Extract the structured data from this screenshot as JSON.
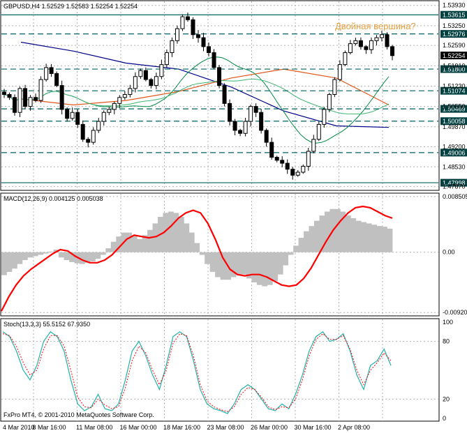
{
  "chart_data": [
    {
      "type": "candlestick",
      "title": "GBPUSD,H4  1.52529 1.52583 1.52254 1.52254",
      "annotation": "Двойная вершина?",
      "y_ticks": [
        "1.53930",
        "1.53250",
        "1.52590",
        "1.51910",
        "1.51230",
        "1.50550",
        "1.49870",
        "1.49200",
        "1.48530",
        "1.47870"
      ],
      "level_lines": [
        {
          "value": "1.53615",
          "style": "solid"
        },
        {
          "value": "1.52976",
          "style": "dashed"
        },
        {
          "value": "1.51800",
          "style": "dashed"
        },
        {
          "value": "1.51074",
          "style": "dashed"
        },
        {
          "value": "1.50469",
          "style": "dashed"
        },
        {
          "value": "1.50058",
          "style": "dashed"
        },
        {
          "value": "1.49006",
          "style": "dashed"
        },
        {
          "value": "1.47998",
          "style": "solid"
        }
      ],
      "current_price": "1.52254",
      "ylim": [
        1.4779,
        1.5404
      ],
      "series": [
        {
          "name": "close",
          "values": [
            1.5095,
            1.5085,
            1.5035,
            1.5115,
            1.5055,
            1.5085,
            1.5075,
            1.5145,
            1.5185,
            1.5165,
            1.5125,
            1.5045,
            1.5015,
            1.5035,
            1.4995,
            1.4945,
            1.4935,
            1.4975,
            1.5005,
            1.5035,
            1.5045,
            1.5065,
            1.5085,
            1.5095,
            1.5115,
            1.5155,
            1.5175,
            1.5145,
            1.5125,
            1.5155,
            1.5195,
            1.5235,
            1.5275,
            1.5315,
            1.5355,
            1.5345,
            1.5295,
            1.5285,
            1.5255,
            1.5235,
            1.5185,
            1.5125,
            1.5065,
            1.5005,
            1.4975,
            1.4965,
            1.5005,
            1.5055,
            1.5035,
            1.4975,
            1.4935,
            1.4885,
            1.4875,
            1.4865,
            1.4845,
            1.4825,
            1.4835,
            1.4855,
            1.4905,
            1.4945,
            1.4995,
            1.5045,
            1.5095,
            1.5145,
            1.5195,
            1.5235,
            1.5265,
            1.5275,
            1.5255,
            1.5245,
            1.5275,
            1.5285,
            1.5295,
            1.5255,
            1.5225
          ]
        },
        {
          "name": "ma_blue",
          "values": [
            1.527,
            1.524,
            1.52,
            1.518,
            1.512,
            1.504,
            1.499,
            1.4985
          ]
        },
        {
          "name": "ma_orange",
          "values": [
            1.508,
            1.506,
            1.5075,
            1.5105,
            1.515,
            1.518,
            1.515,
            1.506
          ]
        }
      ]
    },
    {
      "type": "bar",
      "title": "MACD(12,26,9) 0.004125 0.005038",
      "y_ticks": [
        "0.008505",
        "0.00",
        "-0.009207"
      ],
      "ylim": [
        -0.0095,
        0.0087
      ],
      "series": [
        {
          "name": "histogram",
          "values": [
            -0.0035,
            -0.003,
            -0.0025,
            -0.0018,
            -0.0012,
            -0.0008,
            -0.0006,
            -0.0004,
            -0.0002,
            0.0001,
            0.0004,
            -0.0008,
            -0.0012,
            -0.0015,
            -0.0017,
            -0.0018,
            -0.0016,
            -0.0014,
            -0.001,
            -0.0004,
            0.0006,
            0.0016,
            0.0024,
            0.003,
            0.003,
            0.0025,
            0.002,
            0.0026,
            0.0034,
            0.0044,
            0.0054,
            0.006,
            0.0062,
            0.006,
            0.0054,
            0.0044,
            0.003,
            0.0014,
            -0.0004,
            -0.0018,
            -0.003,
            -0.0038,
            -0.0042,
            -0.0042,
            -0.0038,
            -0.0034,
            -0.0034,
            -0.004,
            -0.0046,
            -0.005,
            -0.0052,
            -0.005,
            -0.0044,
            -0.0034,
            -0.002,
            -0.0004,
            0.001,
            0.0022,
            0.0032,
            0.004,
            0.0048,
            0.0056,
            0.0062,
            0.0066,
            0.0066,
            0.0062,
            0.0056,
            0.0052,
            0.0048,
            0.0046,
            0.0044,
            0.0042,
            0.004,
            0.0039,
            0.0036
          ]
        },
        {
          "name": "signal",
          "values": [
            -0.009,
            -0.0068,
            -0.005,
            -0.0036,
            -0.0026,
            -0.0018,
            -0.001,
            -0.0002,
            0.0004,
            0.0002,
            -0.0006,
            -0.0012,
            -0.0016,
            -0.0016,
            -0.0012,
            -0.0004,
            0.0008,
            0.002,
            0.0026,
            0.0024,
            0.0022,
            0.0024,
            0.003,
            0.004,
            0.0052,
            0.006,
            0.0064,
            0.006,
            0.0044,
            0.002,
            -0.0008,
            -0.0026,
            -0.0034,
            -0.0036,
            -0.0034,
            -0.0034,
            -0.0038,
            -0.0044,
            -0.005,
            -0.0052,
            -0.005,
            -0.004,
            -0.0024,
            -0.0004,
            0.0016,
            0.0034,
            0.0048,
            0.006,
            0.0068,
            0.007,
            0.0068,
            0.0062,
            0.0056,
            0.0052
          ]
        }
      ]
    },
    {
      "type": "line",
      "title": "Stoch(13,3,3) 55.5152 67.9350",
      "y_ticks": [
        "100",
        "80",
        "20",
        "0"
      ],
      "ylim": [
        0,
        100
      ],
      "series": [
        {
          "name": "main",
          "values": [
            90,
            85,
            70,
            50,
            40,
            55,
            80,
            90,
            85,
            70,
            40,
            15,
            8,
            12,
            25,
            10,
            8,
            15,
            40,
            70,
            80,
            65,
            45,
            30,
            55,
            85,
            90,
            85,
            60,
            30,
            15,
            10,
            8,
            5,
            15,
            30,
            35,
            30,
            20,
            10,
            8,
            15,
            10,
            25,
            45,
            70,
            85,
            90,
            80,
            82,
            88,
            70,
            45,
            30,
            55,
            60,
            72,
            55
          ]
        },
        {
          "name": "signal",
          "values": [
            88,
            86,
            75,
            58,
            45,
            50,
            72,
            86,
            86,
            75,
            50,
            22,
            12,
            11,
            20,
            14,
            10,
            12,
            32,
            60,
            75,
            68,
            50,
            35,
            50,
            78,
            88,
            86,
            65,
            35,
            18,
            12,
            9,
            7,
            12,
            25,
            32,
            30,
            22,
            12,
            9,
            12,
            11,
            20,
            40,
            65,
            82,
            88,
            82,
            82,
            86,
            72,
            50,
            35,
            50,
            58,
            68,
            60
          ]
        }
      ]
    }
  ],
  "x_axis_labels": [
    "4 Mar 2010",
    "8 Mar 16:00",
    "11 Mar 08:00",
    "16 Mar 00:00",
    "18 Mar 16:00",
    "23 Mar 08:00",
    "26 Mar 00:00",
    "30 Mar 16:00",
    "2 Apr 08:00"
  ],
  "footer": "FxPro MT4, © 2001-2010 MetaQuotes Software Corp.",
  "colors": {
    "background": "#ffffff",
    "candle": "#000000",
    "ma_blue": "#00008b",
    "ma_orange": "#e0561c",
    "ma_green": "#008b45",
    "ma_lightgreen": "#3cb371",
    "ma_teal": "#2f6f6f",
    "macd_hist": "#c0c0c0",
    "macd_signal": "#ff0000",
    "stoch_main": "#20b2aa",
    "stoch_signal": "#ff0000",
    "level_line": "#006060",
    "annotation": "#e8a040",
    "price_label_bg": "#004040",
    "current_price_bg": "#000000"
  }
}
